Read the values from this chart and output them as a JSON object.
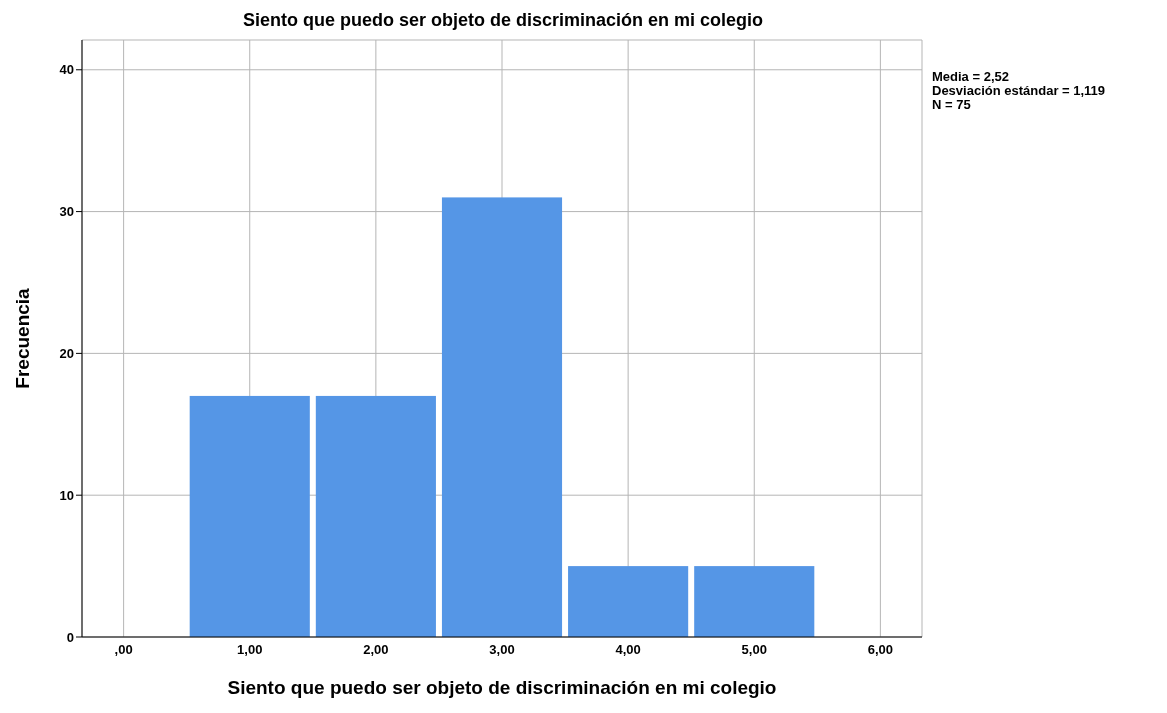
{
  "chart_data": {
    "type": "histogram",
    "title": "Siento que puedo ser objeto de discriminación en mi colegio",
    "xlabel": "Siento que puedo ser objeto de discriminación en mi colegio",
    "ylabel": "Frecuencia",
    "bins": [
      0.5,
      1.5,
      2.5,
      3.5,
      4.5,
      5.5
    ],
    "values": [
      17,
      17,
      31,
      5,
      5
    ],
    "color": "#5596e6",
    "xlim": [
      -0.33,
      6.33
    ],
    "xticks": [
      {
        "value": 0,
        "label": ",00"
      },
      {
        "value": 1,
        "label": "1,00"
      },
      {
        "value": 2,
        "label": "2,00"
      },
      {
        "value": 3,
        "label": "3,00"
      },
      {
        "value": 4,
        "label": "4,00"
      },
      {
        "value": 5,
        "label": "5,00"
      },
      {
        "value": 6,
        "label": "6,00"
      }
    ],
    "ylim": [
      0,
      42.1
    ],
    "yticks": [
      0,
      10,
      20,
      30,
      40
    ],
    "grid": true,
    "annotations": [
      "Media = 2,52",
      "Desviación estándar = 1,119",
      "N = 75"
    ]
  }
}
